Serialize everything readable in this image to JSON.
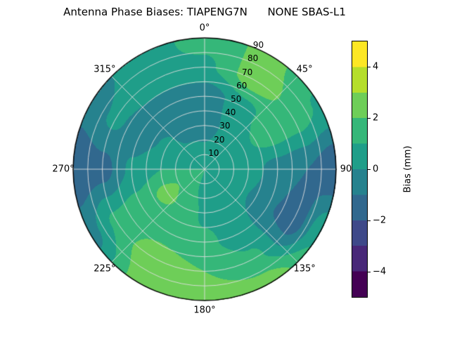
{
  "chart_data": {
    "type": "heatmap",
    "projection": "polar",
    "title": "Antenna Phase Biases: TIAPENG7N      NONE SBAS-L1",
    "angular_ticks_deg": [
      0,
      45,
      90,
      135,
      180,
      225,
      270,
      315
    ],
    "angular_tick_labels": [
      "0°",
      "45°",
      "90",
      "135°",
      "180°",
      "225°",
      "270°",
      "315°"
    ],
    "radial_ticks": [
      10,
      20,
      30,
      40,
      50,
      60,
      70,
      80,
      90
    ],
    "radial_tick_labels": [
      "10",
      "20",
      "30",
      "40",
      "50",
      "60",
      "70",
      "80",
      "90"
    ],
    "radial_label_angle_deg": 22.5,
    "radial_max": 90,
    "levels": [
      -5,
      -4,
      -3,
      -2,
      -1,
      0,
      1,
      2,
      3,
      4,
      5
    ],
    "band_colors": [
      "#440154",
      "#482878",
      "#3e4989",
      "#31688e",
      "#26828e",
      "#1f9e89",
      "#35b779",
      "#6ece58",
      "#b5de2b",
      "#fde725"
    ],
    "grid": {
      "azimuths_deg": [
        0,
        30,
        60,
        90,
        120,
        150,
        180,
        210,
        240,
        270,
        300,
        330
      ],
      "elevations": [
        10,
        30,
        50,
        70,
        90
      ],
      "bias_mm": [
        [
          0.3,
          0.4,
          0.5,
          0.4,
          0.3,
          0.3,
          0.5,
          1.2,
          1.6,
          1.0,
          0.5,
          0.3
        ],
        [
          -0.4,
          0.2,
          0.8,
          0.5,
          0.1,
          0.3,
          0.8,
          1.8,
          2.3,
          1.0,
          0.2,
          -0.2
        ],
        [
          -0.7,
          0.6,
          1.6,
          -0.5,
          -0.9,
          0.5,
          1.2,
          1.6,
          1.4,
          0.2,
          -0.6,
          -0.9
        ],
        [
          0.8,
          2.6,
          1.5,
          -1.0,
          -1.6,
          1.2,
          2.0,
          2.6,
          1.2,
          -1.4,
          0.2,
          0.9
        ],
        [
          1.3,
          2.3,
          0.9,
          -1.9,
          0.8,
          2.5,
          2.7,
          2.4,
          -0.4,
          -1.9,
          -0.6,
          0.6
        ]
      ]
    },
    "colorbar": {
      "label": "Bias (mm)",
      "min": -5,
      "max": 5,
      "tick_values": [
        4,
        2,
        0,
        -2,
        -4
      ],
      "tick_labels": [
        "4",
        "2",
        "0",
        "−2",
        "−4"
      ]
    }
  }
}
